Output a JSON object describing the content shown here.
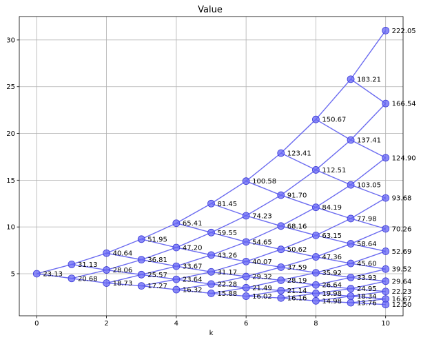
{
  "chart_data": {
    "type": "scatter",
    "title": "Value",
    "xlabel": "k",
    "ylabel": "",
    "xlim": [
      -0.5,
      10.5
    ],
    "ylim": [
      0.5,
      32.5
    ],
    "xticks": [
      0,
      2,
      4,
      6,
      8,
      10
    ],
    "yticks": [
      5,
      10,
      15,
      20,
      25,
      30
    ],
    "grid": true,
    "legend": "none",
    "colors": {
      "marker": "#6464f5",
      "line": "#6b6bf0",
      "grid": "#b0b0b0"
    },
    "points": [
      {
        "k": 0,
        "y": 5.0,
        "label": "23.13"
      },
      {
        "k": 1,
        "y": 6.0,
        "label": "31.13"
      },
      {
        "k": 1,
        "y": 4.5,
        "label": "20.68"
      },
      {
        "k": 2,
        "y": 7.2,
        "label": "40.64"
      },
      {
        "k": 2,
        "y": 5.4,
        "label": "28.06"
      },
      {
        "k": 2,
        "y": 4.0,
        "label": "18.73"
      },
      {
        "k": 3,
        "y": 8.7,
        "label": "51.95"
      },
      {
        "k": 3,
        "y": 6.5,
        "label": "36.81"
      },
      {
        "k": 3,
        "y": 4.9,
        "label": "25.57"
      },
      {
        "k": 3,
        "y": 3.7,
        "label": "17.27"
      },
      {
        "k": 4,
        "y": 10.4,
        "label": "65.41"
      },
      {
        "k": 4,
        "y": 7.8,
        "label": "47.20"
      },
      {
        "k": 4,
        "y": 5.8,
        "label": "33.67"
      },
      {
        "k": 4,
        "y": 4.4,
        "label": "23.64"
      },
      {
        "k": 4,
        "y": 3.3,
        "label": "16.32"
      },
      {
        "k": 5,
        "y": 12.5,
        "label": "81.45"
      },
      {
        "k": 5,
        "y": 9.4,
        "label": "59.55"
      },
      {
        "k": 5,
        "y": 7.0,
        "label": "43.26"
      },
      {
        "k": 5,
        "y": 5.2,
        "label": "31.17"
      },
      {
        "k": 5,
        "y": 3.9,
        "label": "22.28"
      },
      {
        "k": 5,
        "y": 2.9,
        "label": "15.88"
      },
      {
        "k": 6,
        "y": 14.9,
        "label": "100.58"
      },
      {
        "k": 6,
        "y": 11.2,
        "label": "74.23"
      },
      {
        "k": 6,
        "y": 8.4,
        "label": "54.65"
      },
      {
        "k": 6,
        "y": 6.3,
        "label": "40.07"
      },
      {
        "k": 6,
        "y": 4.7,
        "label": "29.32"
      },
      {
        "k": 6,
        "y": 3.5,
        "label": "21.49"
      },
      {
        "k": 6,
        "y": 2.6,
        "label": "16.02"
      },
      {
        "k": 7,
        "y": 17.9,
        "label": "123.41"
      },
      {
        "k": 7,
        "y": 13.4,
        "label": "91.70"
      },
      {
        "k": 7,
        "y": 10.1,
        "label": "68.16"
      },
      {
        "k": 7,
        "y": 7.6,
        "label": "50.62"
      },
      {
        "k": 7,
        "y": 5.7,
        "label": "37.59"
      },
      {
        "k": 7,
        "y": 4.3,
        "label": "28.19"
      },
      {
        "k": 7,
        "y": 3.2,
        "label": "21.14"
      },
      {
        "k": 7,
        "y": 2.4,
        "label": "16.16"
      },
      {
        "k": 8,
        "y": 21.5,
        "label": "150.67"
      },
      {
        "k": 8,
        "y": 16.1,
        "label": "112.51"
      },
      {
        "k": 8,
        "y": 12.1,
        "label": "84.19"
      },
      {
        "k": 8,
        "y": 9.1,
        "label": "63.15"
      },
      {
        "k": 8,
        "y": 6.8,
        "label": "47.36"
      },
      {
        "k": 8,
        "y": 5.1,
        "label": "35.92"
      },
      {
        "k": 8,
        "y": 3.8,
        "label": "26.64"
      },
      {
        "k": 8,
        "y": 2.9,
        "label": "19.98"
      },
      {
        "k": 8,
        "y": 2.1,
        "label": "14.98"
      },
      {
        "k": 9,
        "y": 25.8,
        "label": "183.21"
      },
      {
        "k": 9,
        "y": 19.3,
        "label": "137.41"
      },
      {
        "k": 9,
        "y": 14.5,
        "label": "103.05"
      },
      {
        "k": 9,
        "y": 10.9,
        "label": "77.98"
      },
      {
        "k": 9,
        "y": 8.2,
        "label": "58.64"
      },
      {
        "k": 9,
        "y": 6.1,
        "label": "45.60"
      },
      {
        "k": 9,
        "y": 4.6,
        "label": "33.93"
      },
      {
        "k": 9,
        "y": 3.4,
        "label": "24.95"
      },
      {
        "k": 9,
        "y": 2.6,
        "label": "18.34"
      },
      {
        "k": 9,
        "y": 1.9,
        "label": "13.76"
      },
      {
        "k": 10,
        "y": 31.0,
        "label": "222.05"
      },
      {
        "k": 10,
        "y": 23.2,
        "label": "166.54"
      },
      {
        "k": 10,
        "y": 17.4,
        "label": "124.90"
      },
      {
        "k": 10,
        "y": 13.1,
        "label": "93.68"
      },
      {
        "k": 10,
        "y": 9.8,
        "label": "70.26"
      },
      {
        "k": 10,
        "y": 7.4,
        "label": "52.69"
      },
      {
        "k": 10,
        "y": 5.5,
        "label": "39.52"
      },
      {
        "k": 10,
        "y": 4.2,
        "label": "29.64"
      },
      {
        "k": 10,
        "y": 3.1,
        "label": "22.23"
      },
      {
        "k": 10,
        "y": 2.3,
        "label": "16.67"
      },
      {
        "k": 10,
        "y": 1.7,
        "label": "12.50"
      }
    ]
  }
}
